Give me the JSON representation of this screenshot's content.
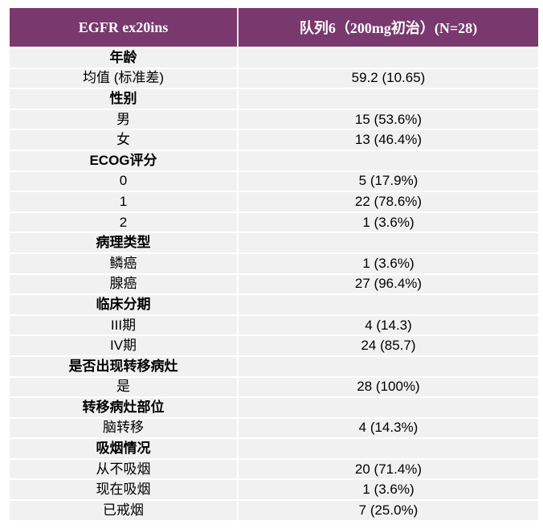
{
  "header": {
    "col1": "EGFR ex20ins",
    "col2": "队列6（200mg初治）(N=28)"
  },
  "rows": [
    {
      "label": "年龄",
      "value": "",
      "category": true
    },
    {
      "label": "均值 (标准差)",
      "value": "59.2 (10.65)"
    },
    {
      "label": "性别",
      "value": "",
      "category": true
    },
    {
      "label": "男",
      "value": "15 (53.6%)"
    },
    {
      "label": "女",
      "value": "13 (46.4%)"
    },
    {
      "label": "ECOG评分",
      "value": "",
      "category": true
    },
    {
      "label": "0",
      "value": "5 (17.9%)"
    },
    {
      "label": "1",
      "value": "22 (78.6%)"
    },
    {
      "label": "2",
      "value": "1 (3.6%)"
    },
    {
      "label": "病理类型",
      "value": "",
      "category": true
    },
    {
      "label": "鳞癌",
      "value": "1 (3.6%)"
    },
    {
      "label": "腺癌",
      "value": "27 (96.4%)"
    },
    {
      "label": "临床分期",
      "value": "",
      "category": true
    },
    {
      "label": "III期",
      "value": "4 (14.3)"
    },
    {
      "label": "IV期",
      "value": "24 (85.7)"
    },
    {
      "label": "是否出现转移病灶",
      "value": "",
      "category": true
    },
    {
      "label": "是",
      "value": "28 (100%)"
    },
    {
      "label": "转移病灶部位",
      "value": "",
      "category": true
    },
    {
      "label": "脑转移",
      "value": "4 (14.3%)"
    },
    {
      "label": "吸烟情况",
      "value": "",
      "category": true
    },
    {
      "label": "从不吸烟",
      "value": "20 (71.4%)"
    },
    {
      "label": "现在吸烟",
      "value": "1 (3.6%)"
    },
    {
      "label": "已戒烟",
      "value": "7 (25.0%)"
    }
  ]
}
